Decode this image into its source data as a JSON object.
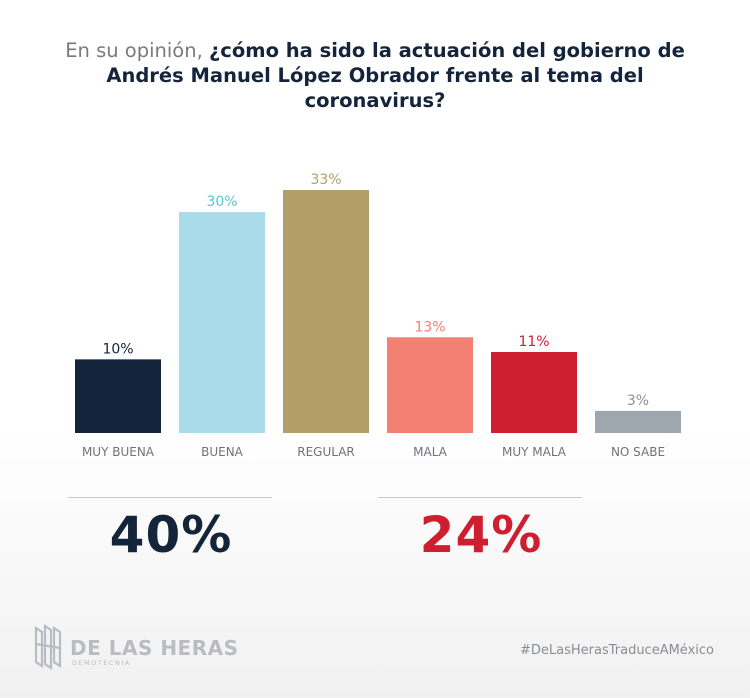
{
  "title": {
    "lead": "En su opinión,",
    "question": "¿cómo ha sido la actuación del gobierno de Andrés Manuel López Obrador frente al tema del coronavirus?"
  },
  "chart_data": {
    "type": "bar",
    "categories": [
      "MUY BUENA",
      "BUENA",
      "REGULAR",
      "MALA",
      "MUY MALA",
      "NO SABE"
    ],
    "values": [
      10,
      30,
      33,
      13,
      11,
      3
    ],
    "value_labels": [
      "10%",
      "30%",
      "33%",
      "13%",
      "11%",
      "3%"
    ],
    "colors": [
      "#14243a",
      "#a9dbea",
      "#b29f68",
      "#f28073",
      "#cd1f30",
      "#9ea6ae"
    ],
    "label_colors": [
      "#14243a",
      "#5cc3d3",
      "#b29f68",
      "#f28073",
      "#cd1f30",
      "#8a9098"
    ],
    "ylim": [
      0,
      33
    ],
    "grid": false,
    "legend": "none"
  },
  "summary": {
    "positive": {
      "value": "40%",
      "color": "#14243a"
    },
    "negative": {
      "value": "24%",
      "color": "#cd1f30"
    }
  },
  "brand": {
    "name": "DE LAS HERAS",
    "subtitle": "DEMOTECNIA",
    "hashtag": "#DeLasHerasTraduceAMéxico",
    "logo_icon": "building-columns-icon"
  }
}
